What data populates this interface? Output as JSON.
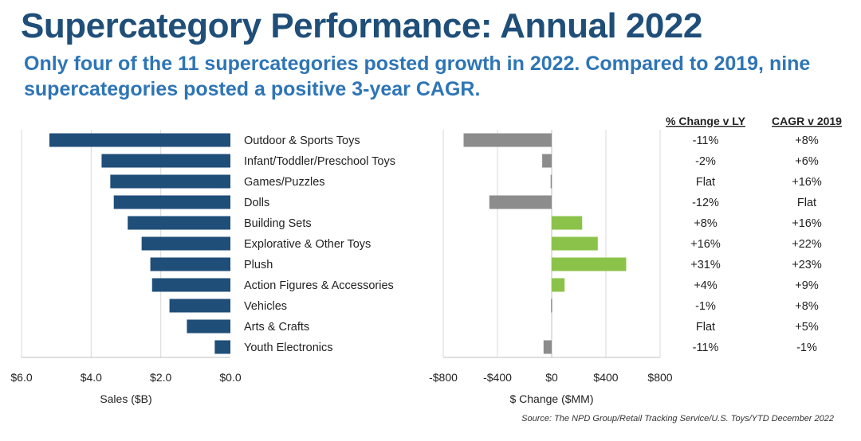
{
  "title": "Supercategory Performance: Annual 2022",
  "subtitle": "Only four of the 11 supercategories posted growth in 2022. Compared to 2019, nine supercategories posted a positive 3-year CAGR.",
  "source": "Source: The NPD Group/Retail Tracking Service/U.S. Toys/YTD December 2022",
  "colors": {
    "title": "#1f4e79",
    "subtitle": "#2e75b6",
    "sales_bar": "#1f4e79",
    "negative": "#8c8c8c",
    "positive": "#8bc34a"
  },
  "chart_data": [
    {
      "type": "bar",
      "orientation": "horizontal-reversed",
      "categories": [
        "Outdoor & Sports Toys",
        "Infant/Toddler/Preschool Toys",
        "Games/Puzzles",
        "Dolls",
        "Building Sets",
        "Explorative & Other Toys",
        "Plush",
        "Action Figures & Accessories",
        "Vehicles",
        "Arts & Crafts",
        "Youth Electronics"
      ],
      "values": [
        5.2,
        3.7,
        3.45,
        3.35,
        2.95,
        2.55,
        2.3,
        2.25,
        1.75,
        1.25,
        0.45
      ],
      "xlabel": "Sales ($B)",
      "xlim": [
        0,
        6
      ],
      "ticks": [
        "$6.0",
        "$4.0",
        "$2.0",
        "$0.0"
      ],
      "tick_values": [
        6,
        4,
        2,
        0
      ],
      "grid": true
    },
    {
      "type": "bar",
      "orientation": "horizontal",
      "categories": [
        "Outdoor & Sports Toys",
        "Infant/Toddler/Preschool Toys",
        "Games/Puzzles",
        "Dolls",
        "Building Sets",
        "Explorative & Other Toys",
        "Plush",
        "Action Figures & Accessories",
        "Vehicles",
        "Arts & Crafts",
        "Youth Electronics"
      ],
      "values": [
        -650,
        -70,
        -8,
        -460,
        225,
        340,
        550,
        95,
        -5,
        0,
        -60
      ],
      "xlabel": "$ Change ($MM)",
      "xlim": [
        -800,
        800
      ],
      "ticks": [
        "-$800",
        "-$400",
        "$0",
        "$400",
        "$800"
      ],
      "tick_values": [
        -800,
        -400,
        0,
        400,
        800
      ],
      "grid": true
    },
    {
      "type": "table",
      "columns": [
        "% Change v LY",
        "CAGR v 2019"
      ],
      "rows": [
        [
          "-11%",
          "+8%"
        ],
        [
          "-2%",
          "+6%"
        ],
        [
          "Flat",
          "+16%"
        ],
        [
          "-12%",
          "Flat"
        ],
        [
          "+8%",
          "+16%"
        ],
        [
          "+16%",
          "+22%"
        ],
        [
          "+31%",
          "+23%"
        ],
        [
          "+4%",
          "+9%"
        ],
        [
          "-1%",
          "+8%"
        ],
        [
          "Flat",
          "+5%"
        ],
        [
          "-11%",
          "-1%"
        ]
      ]
    }
  ]
}
